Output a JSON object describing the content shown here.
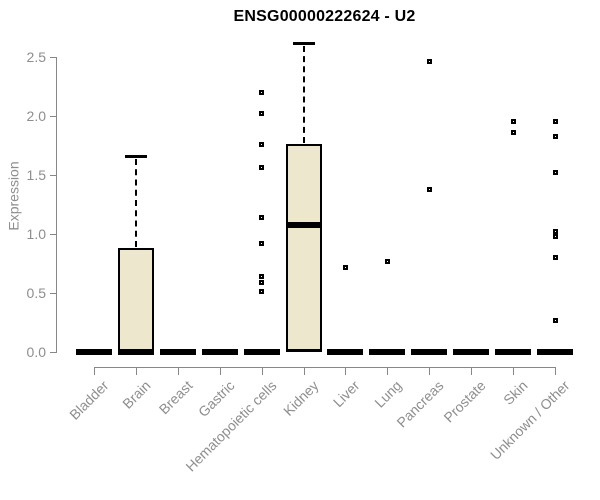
{
  "colors": {
    "box_fill": "#ECE7CD",
    "box_border": "#000000",
    "axis": "#878787",
    "tick_text": "#8E8E8E",
    "title_text": "#000000",
    "background": "#FFFFFF"
  },
  "chart_data": {
    "type": "boxplot",
    "title": "ENSG00000222624 - U2",
    "xlabel": "",
    "ylabel": "Expression",
    "ylim": [
      0,
      2.65
    ],
    "grid": false,
    "legend": null,
    "yticks": [
      0.0,
      0.5,
      1.0,
      1.5,
      2.0,
      2.5
    ],
    "ytick_labels": [
      "0.0",
      "0.5",
      "1.0",
      "1.5",
      "2.0",
      "2.5"
    ],
    "categories": [
      "Bladder",
      "Brain",
      "Breast",
      "Gastric",
      "Hematopoietic cells",
      "Kidney",
      "Liver",
      "Lung",
      "Pancreas",
      "Prostate",
      "Skin",
      "Unknown / Other"
    ],
    "boxes": [
      {
        "category": "Bladder",
        "whisker_low": 0,
        "q1": 0,
        "median": 0,
        "q3": 0,
        "whisker_high": 0,
        "outliers": []
      },
      {
        "category": "Brain",
        "whisker_low": 0,
        "q1": 0,
        "median": 0,
        "q3": 0.88,
        "whisker_high": 1.66,
        "outliers": []
      },
      {
        "category": "Breast",
        "whisker_low": 0,
        "q1": 0,
        "median": 0,
        "q3": 0,
        "whisker_high": 0,
        "outliers": []
      },
      {
        "category": "Gastric",
        "whisker_low": 0,
        "q1": 0,
        "median": 0,
        "q3": 0,
        "whisker_high": 0,
        "outliers": []
      },
      {
        "category": "Hematopoietic cells",
        "whisker_low": 0,
        "q1": 0,
        "median": 0,
        "q3": 0,
        "whisker_high": 0,
        "outliers": [
          2.2,
          2.02,
          1.76,
          1.56,
          1.14,
          0.92,
          0.64,
          0.59,
          0.51
        ]
      },
      {
        "category": "Kidney",
        "whisker_low": 0,
        "q1": 0,
        "median": 1.08,
        "q3": 1.76,
        "whisker_high": 2.62,
        "outliers": []
      },
      {
        "category": "Liver",
        "whisker_low": 0,
        "q1": 0,
        "median": 0,
        "q3": 0,
        "whisker_high": 0,
        "outliers": [
          0.72
        ]
      },
      {
        "category": "Lung",
        "whisker_low": 0,
        "q1": 0,
        "median": 0,
        "q3": 0,
        "whisker_high": 0,
        "outliers": [
          0.77
        ]
      },
      {
        "category": "Pancreas",
        "whisker_low": 0,
        "q1": 0,
        "median": 0,
        "q3": 0,
        "whisker_high": 0,
        "outliers": [
          2.46,
          1.38
        ]
      },
      {
        "category": "Prostate",
        "whisker_low": 0,
        "q1": 0,
        "median": 0,
        "q3": 0,
        "whisker_high": 0,
        "outliers": []
      },
      {
        "category": "Skin",
        "whisker_low": 0,
        "q1": 0,
        "median": 0,
        "q3": 0,
        "whisker_high": 0,
        "outliers": [
          1.95,
          1.86
        ]
      },
      {
        "category": "Unknown / Other",
        "whisker_low": 0,
        "q1": 0,
        "median": 0,
        "q3": 0,
        "whisker_high": 0,
        "outliers": [
          1.95,
          1.83,
          1.52,
          1.02,
          0.98,
          0.8,
          0.27
        ]
      }
    ]
  }
}
